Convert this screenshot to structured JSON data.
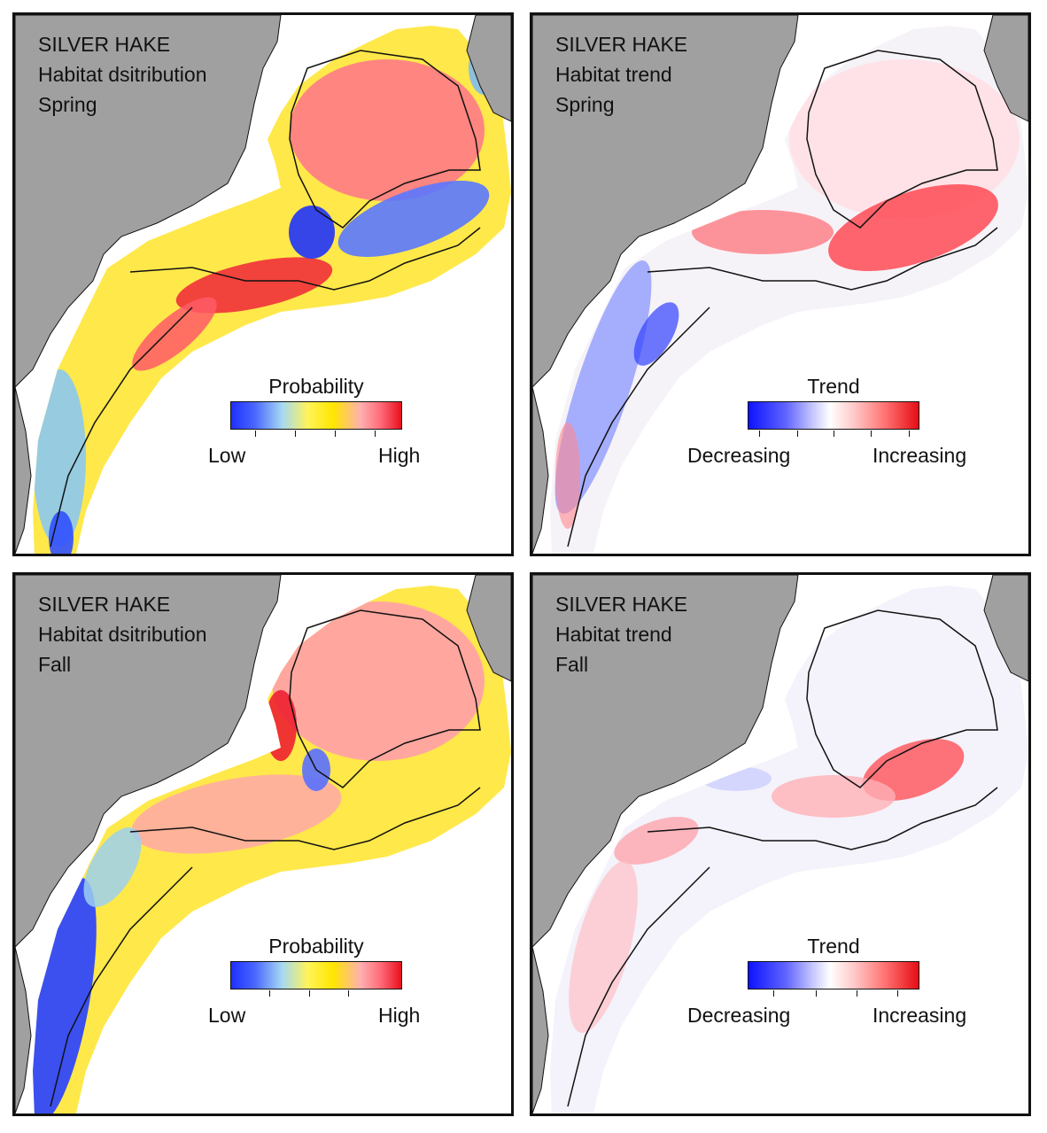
{
  "panels": [
    {
      "species": "SILVER HAKE",
      "subtitle": "Habitat dsitribution",
      "season": "Spring",
      "legend": {
        "title": "Probability",
        "low": "Low",
        "high": "High",
        "scale": "probability"
      }
    },
    {
      "species": "SILVER HAKE",
      "subtitle": "Habitat trend",
      "season": "Spring",
      "legend": {
        "title": "Trend",
        "low": "Decreasing",
        "high": "Increasing",
        "scale": "trend"
      }
    },
    {
      "species": "SILVER HAKE",
      "subtitle": "Habitat dsitribution",
      "season": "Fall",
      "legend": {
        "title": "Probability",
        "low": "Low",
        "high": "High",
        "scale": "probability"
      }
    },
    {
      "species": "SILVER HAKE",
      "subtitle": "Habitat trend",
      "season": "Fall",
      "legend": {
        "title": "Trend",
        "low": "Decreasing",
        "high": "Increasing",
        "scale": "trend"
      }
    }
  ],
  "colors": {
    "land": "#a0a0a0",
    "water": "#ffffff",
    "contour": "#111111",
    "prob_low": "#1f2fff",
    "prob_mid": "#ffe600",
    "prob_high": "#e8101e",
    "trend_decreasing": "#0d13ff",
    "trend_neutral": "#ffffff",
    "trend_increasing": "#e50d14"
  }
}
